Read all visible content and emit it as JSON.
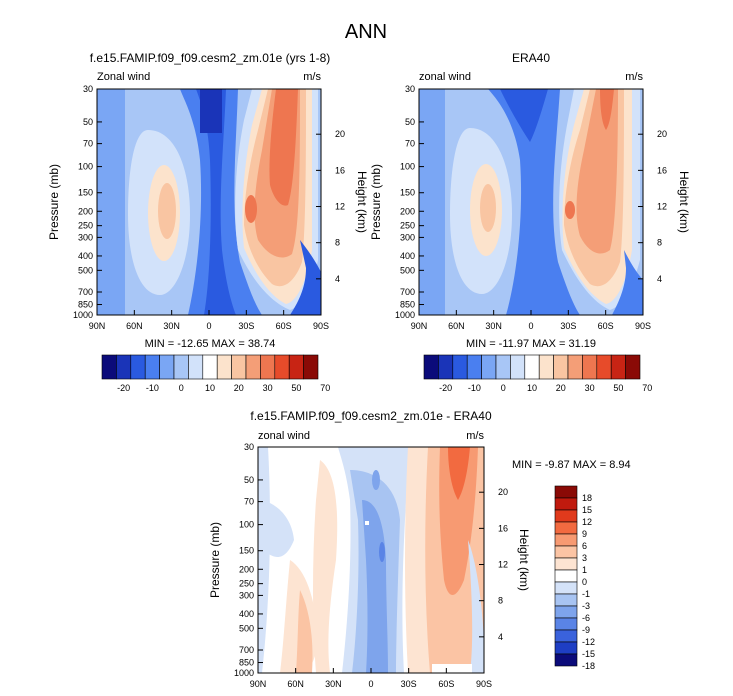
{
  "figure_title": "ANN",
  "chart_data": [
    {
      "id": "model",
      "type": "heatmap",
      "title": "f.e15.FAMIP.f09_f09.cesm2_zm.01e (yrs 1-8)",
      "left_label": "Zonal wind",
      "right_label": "m/s",
      "xlabel": "",
      "ylabel": "Pressure (mb)",
      "ylabel_right": "Height (km)",
      "x_ticks": [
        "90N",
        "60N",
        "30N",
        "0",
        "30S",
        "60S",
        "90S"
      ],
      "y_ticks": [
        "30",
        "50",
        "70",
        "100",
        "150",
        "200",
        "250",
        "300",
        "400",
        "500",
        "700",
        "850",
        "1000"
      ],
      "height_ticks": [
        "20",
        "16",
        "12",
        "8",
        "4"
      ],
      "stats": "MIN = -12.65  MAX = 38.74",
      "colorbar_labels": [
        "-20",
        "-10",
        "0",
        "10",
        "20",
        "30",
        "50",
        "70"
      ]
    },
    {
      "id": "obs",
      "type": "heatmap",
      "title": "ERA40",
      "left_label": "zonal wind",
      "right_label": "m/s",
      "xlabel": "",
      "ylabel": "Pressure (mb)",
      "ylabel_right": "Height (km)",
      "x_ticks": [
        "90N",
        "60N",
        "30N",
        "0",
        "30S",
        "60S",
        "90S"
      ],
      "y_ticks": [
        "30",
        "50",
        "70",
        "100",
        "150",
        "200",
        "250",
        "300",
        "400",
        "500",
        "700",
        "850",
        "1000"
      ],
      "height_ticks": [
        "20",
        "16",
        "12",
        "8",
        "4"
      ],
      "stats": "MIN = -11.97  MAX =  31.19",
      "colorbar_labels": [
        "-20",
        "-10",
        "0",
        "10",
        "20",
        "30",
        "50",
        "70"
      ]
    },
    {
      "id": "diff",
      "type": "heatmap",
      "title": "f.e15.FAMIP.f09_f09.cesm2_zm.01e - ERA40",
      "left_label": "zonal wind",
      "right_label": "m/s",
      "xlabel": "",
      "ylabel": "Pressure (mb)",
      "ylabel_right": "Height (km)",
      "x_ticks": [
        "90N",
        "60N",
        "30N",
        "0",
        "30S",
        "60S",
        "90S"
      ],
      "y_ticks": [
        "30",
        "50",
        "70",
        "100",
        "150",
        "200",
        "250",
        "300",
        "400",
        "500",
        "700",
        "850",
        "1000"
      ],
      "height_ticks": [
        "20",
        "16",
        "12",
        "8",
        "4"
      ],
      "stats": "MIN = -9.87  MAX =  8.94",
      "colorbar_labels": [
        "18",
        "15",
        "12",
        "9",
        "6",
        "3",
        "1",
        "0",
        "-1",
        "-3",
        "-6",
        "-9",
        "-12",
        "-15",
        "-18"
      ]
    }
  ],
  "palettes": {
    "full": [
      "#0b0b7a",
      "#1a34b8",
      "#2a5ae0",
      "#4a7ff0",
      "#7aa6f4",
      "#a8c6f6",
      "#d2e2fa",
      "#ffffff",
      "#fce3cc",
      "#f9c5a2",
      "#f49e77",
      "#ee7650",
      "#e74b2a",
      "#c82414",
      "#8a0a06"
    ],
    "diff": [
      "#8a0a06",
      "#c01a0e",
      "#e03a1c",
      "#f26a40",
      "#f79a72",
      "#fbc4a4",
      "#fde4d2",
      "#ffffff",
      "#d4e2f8",
      "#a8c4f2",
      "#7ea4ec",
      "#5a84e6",
      "#3a62dc",
      "#1e3ec4",
      "#0b0b7a"
    ]
  }
}
